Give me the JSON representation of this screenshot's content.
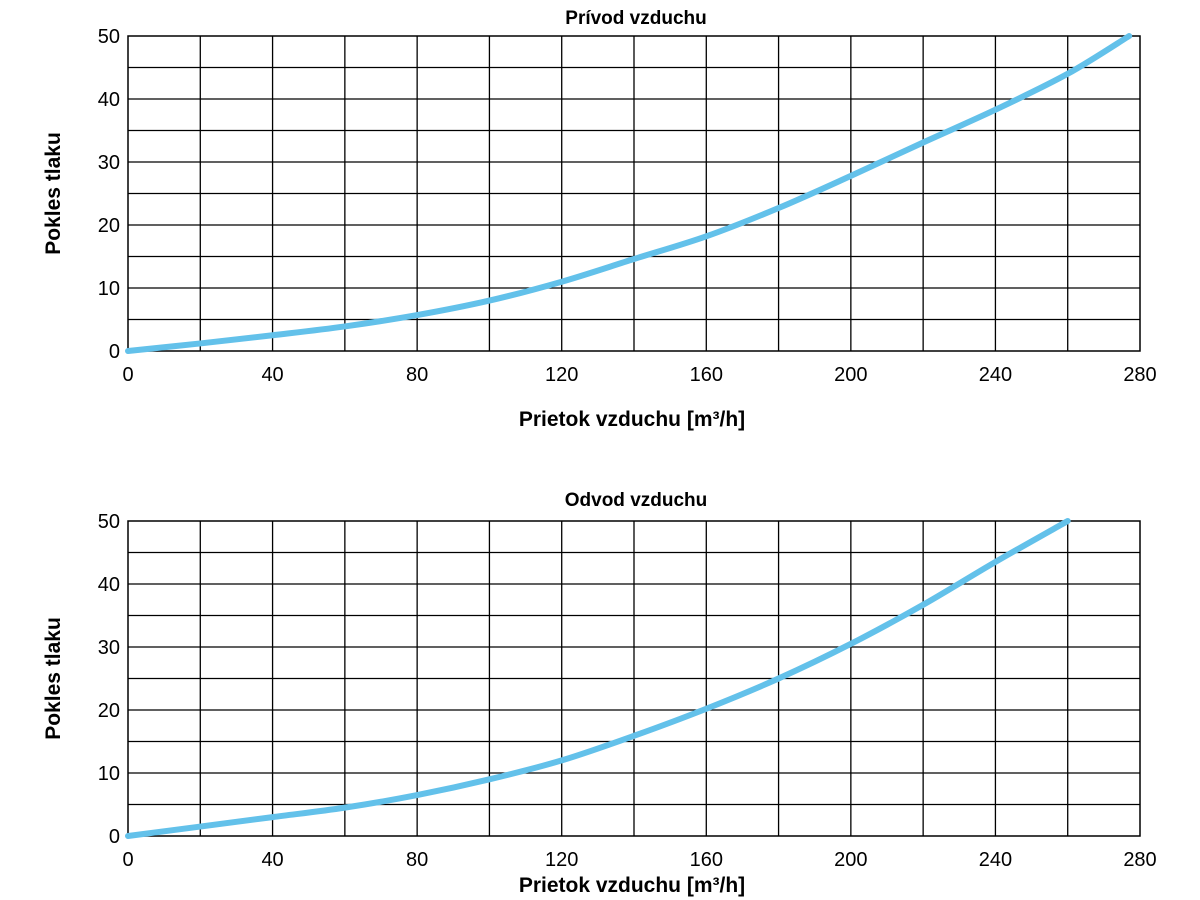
{
  "colors": {
    "curve": "#63c1ea",
    "grid": "#000000",
    "background": "#ffffff"
  },
  "chart_data": [
    {
      "type": "line",
      "title": "Prívod vzduchu",
      "xlabel": "Prietok vzduchu [m³/h]",
      "ylabel": "Pokles tlaku",
      "xlim": [
        0,
        280
      ],
      "ylim": [
        0,
        50
      ],
      "xticks": [
        0,
        40,
        80,
        120,
        160,
        200,
        240,
        280
      ],
      "yticks": [
        0,
        10,
        20,
        30,
        40,
        50
      ],
      "grid": true,
      "series": [
        {
          "x": [
            0,
            20,
            40,
            60,
            80,
            100,
            120,
            140,
            160,
            180,
            200,
            220,
            240,
            260,
            277
          ],
          "y": [
            0,
            1.2,
            2.5,
            3.9,
            5.7,
            8.0,
            11.0,
            14.6,
            18.2,
            22.7,
            27.8,
            33.1,
            38.3,
            44.0,
            50.0
          ]
        }
      ]
    },
    {
      "type": "line",
      "title": "Odvod vzduchu",
      "xlabel": "Prietok vzduchu [m³/h]",
      "ylabel": "Pokles tlaku",
      "xlim": [
        0,
        280
      ],
      "ylim": [
        0,
        50
      ],
      "xticks": [
        0,
        40,
        80,
        120,
        160,
        200,
        240,
        280
      ],
      "yticks": [
        0,
        10,
        20,
        30,
        40,
        50
      ],
      "grid": true,
      "series": [
        {
          "x": [
            0,
            20,
            40,
            60,
            80,
            100,
            120,
            140,
            160,
            180,
            200,
            220,
            240,
            260
          ],
          "y": [
            0,
            1.5,
            3.0,
            4.5,
            6.5,
            9.0,
            12.0,
            15.9,
            20.2,
            25.0,
            30.5,
            36.7,
            43.5,
            50.0
          ]
        }
      ]
    }
  ]
}
